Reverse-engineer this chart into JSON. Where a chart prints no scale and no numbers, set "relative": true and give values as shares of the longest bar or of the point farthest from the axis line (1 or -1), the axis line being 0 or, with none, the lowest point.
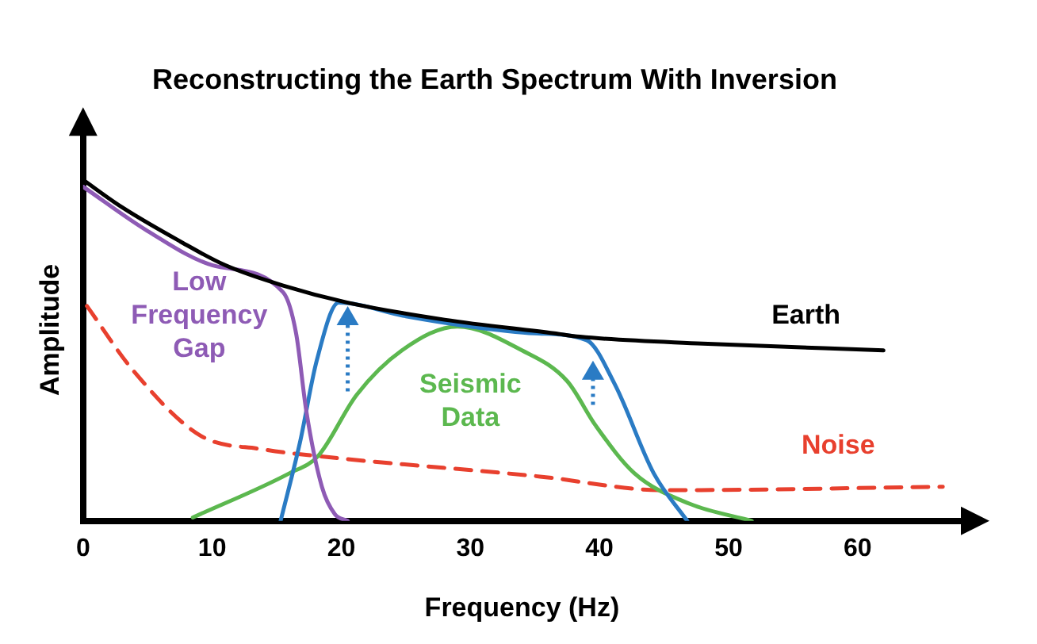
{
  "chart_data": {
    "type": "line",
    "title": "Reconstructing the Earth Spectrum With Inversion",
    "xlabel": "Frequency (Hz)",
    "ylabel": "Amplitude",
    "relative": true,
    "xlim": [
      0,
      68
    ],
    "xticks": [
      0,
      10,
      20,
      30,
      40,
      50,
      60
    ],
    "tick_labels": "x",
    "grid": false,
    "legend": false,
    "marker": "none",
    "series": [
      {
        "name": "Earth",
        "color": "#000000",
        "x": [
          0,
          3,
          7.5,
          11,
          15.5,
          20.5,
          28,
          36.5,
          38.5,
          48,
          62
        ],
        "values": [
          1,
          0.92,
          0.82,
          0.75,
          0.69,
          0.64,
          0.59,
          0.55,
          0.54,
          0.52,
          0.5
        ]
      },
      {
        "name": "Low Frequency Gap",
        "color": "#8e5bb5",
        "x": [
          0,
          5,
          10,
          15.5,
          16.5,
          17.3,
          18.5,
          19.5,
          20.5
        ],
        "values": [
          0.98,
          0.85,
          0.75,
          0.67,
          0.55,
          0.32,
          0.1,
          0.02,
          0
        ]
      },
      {
        "color": "#2a7bc4",
        "x": [
          15.3,
          16.8,
          18.1,
          19.8,
          25,
          30,
          35,
          39,
          41.2,
          44.2,
          46.8
        ],
        "values": [
          0,
          0.23,
          0.47,
          0.64,
          0.6,
          0.57,
          0.55,
          0.53,
          0.4,
          0.14,
          0
        ]
      },
      {
        "name": "Seismic Data",
        "color": "#5cb84f",
        "x": [
          8.5,
          16,
          18.2,
          21.2,
          24.7,
          29,
          34,
          37.5,
          39.7,
          42.7,
          47,
          51.8
        ],
        "values": [
          0.01,
          0.14,
          0.19,
          0.37,
          0.5,
          0.57,
          0.5,
          0.41,
          0.28,
          0.14,
          0.05,
          0
        ]
      },
      {
        "name": "Noise",
        "color": "#e8402e",
        "line_style": "dashed",
        "x": [
          0.3,
          3.9,
          9.1,
          13.9,
          18.2,
          35.4,
          45,
          66.6
        ],
        "values": [
          0.63,
          0.44,
          0.25,
          0.21,
          0.19,
          0.13,
          0.09,
          0.1
        ]
      }
    ]
  }
}
